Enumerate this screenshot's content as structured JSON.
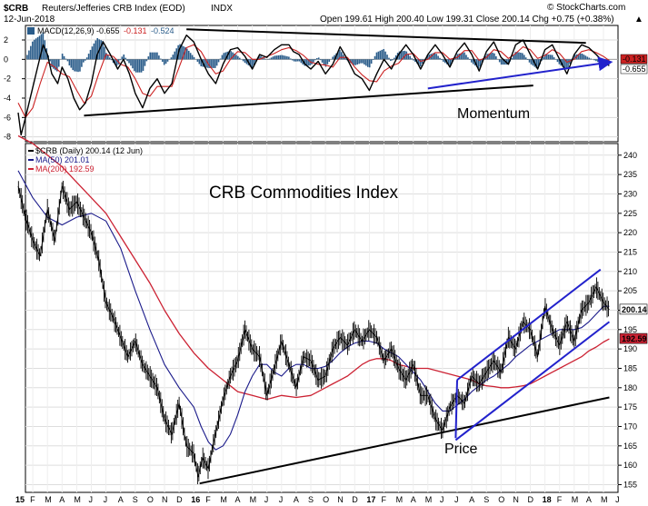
{
  "header": {
    "symbol": "$CRB",
    "name": "Reuters/Jefferies CRB Index (EOD)",
    "exchange": "INDX",
    "date": "12-Jun-2018",
    "watermark": "© StockCharts.com",
    "ohlc": "Open 199.61  High 200.40  Low 199.31  Close 200.14  Chg +0.75 (+0.38%)",
    "ohlc_arrow": "▲"
  },
  "chart_data": [
    {
      "type": "line",
      "panel": "indicator",
      "legend": {
        "label": "MACD(12,26,9)",
        "macd_value": "-0.655",
        "signal_value": "-0.131",
        "hist_value": "-0.524"
      },
      "ylim": [
        -8.5,
        3.5
      ],
      "yticks": [
        "2",
        "0",
        "-2",
        "-4",
        "-6",
        "-8"
      ],
      "ytick_values": [
        2,
        0,
        -2,
        -4,
        -6,
        -8
      ],
      "last_value_labels": [
        "-0.131",
        "-0.655"
      ],
      "annotation": "Momentum",
      "colors": {
        "macd": "#000000",
        "signal": "#cc2222",
        "histogram": "#2a5c8a",
        "trendline": "#2222cc"
      },
      "series": [
        {
          "key": "macd",
          "x": [
            0,
            0.2,
            0.5,
            0.9,
            1.3,
            1.7,
            2.0,
            2.3,
            2.7,
            3.0,
            3.4,
            3.8,
            4.2,
            4.6,
            5.0,
            5.4,
            5.8,
            6.3,
            6.8,
            7.2,
            7.6,
            8.0,
            8.5,
            9.0,
            9.5,
            10.0,
            10.5,
            11.0,
            11.5,
            12.0,
            12.5,
            13.0,
            13.5,
            14.0,
            14.5,
            15.0,
            15.5,
            16.0,
            16.5,
            17.0,
            17.5,
            18.0,
            18.5,
            18.8,
            19.2,
            19.6,
            20.0,
            20.5,
            21.0,
            21.5,
            22.0,
            22.5,
            23.0,
            23.5,
            24.0,
            24.5,
            25.0,
            25.5,
            26.0,
            26.5,
            27.0,
            27.5,
            28.0,
            28.5,
            29.0,
            29.5,
            30.0,
            30.5,
            31.0,
            31.5,
            32.0,
            32.5,
            33.0,
            33.5,
            34.0,
            34.5,
            35.0,
            35.5,
            36.0,
            36.5,
            37.0,
            37.5,
            38.0,
            38.5,
            39.0,
            39.5,
            40.0,
            40.4
          ],
          "values": [
            -5.5,
            -7.8,
            -6.0,
            -3.5,
            -1.0,
            1.5,
            0.5,
            -1.5,
            -2.5,
            -0.8,
            -2.0,
            -4.0,
            -5.2,
            -4.5,
            -2.5,
            0.5,
            1.8,
            0.5,
            -1.0,
            0.0,
            -1.5,
            -3.5,
            -5.0,
            -3.0,
            -2.0,
            -3.5,
            -2.5,
            1.0,
            2.5,
            1.8,
            0.0,
            -1.5,
            -2.5,
            -0.5,
            1.0,
            1.2,
            0.3,
            -1.0,
            0.5,
            0.2,
            1.0,
            1.5,
            1.5,
            0.8,
            0.5,
            -0.5,
            -1.0,
            -0.2,
            -1.5,
            -0.5,
            1.3,
            0.0,
            -1.5,
            -2.0,
            -3.2,
            -1.5,
            0.0,
            -1.0,
            0.5,
            1.5,
            0.5,
            -1.0,
            0.5,
            1.5,
            0.5,
            -0.8,
            0.8,
            1.7,
            0.5,
            -1.2,
            0.8,
            1.8,
            0.2,
            -0.5,
            1.5,
            2.0,
            0.5,
            -1.0,
            1.0,
            1.5,
            0.0,
            -1.5,
            0.5,
            1.5,
            1.2,
            0.5,
            -0.3,
            -0.65
          ]
        },
        {
          "key": "signal",
          "x": [
            0,
            0.5,
            1.0,
            1.5,
            2.0,
            2.5,
            3.0,
            3.5,
            4.0,
            4.5,
            5.0,
            5.5,
            6.0,
            6.5,
            7.0,
            7.5,
            8.0,
            8.5,
            9.0,
            9.5,
            10.0,
            10.5,
            11.0,
            11.5,
            12.0,
            12.5,
            13.0,
            13.5,
            14.0,
            14.5,
            15.0,
            15.5,
            16.0,
            16.5,
            17.0,
            17.5,
            18.0,
            18.5,
            19.0,
            19.5,
            20.0,
            20.5,
            21.0,
            21.5,
            22.0,
            22.5,
            23.0,
            23.5,
            24.0,
            24.5,
            25.0,
            25.5,
            26.0,
            26.5,
            27.0,
            27.5,
            28.0,
            28.5,
            29.0,
            29.5,
            30.0,
            30.5,
            31.0,
            31.5,
            32.0,
            32.5,
            33.0,
            33.5,
            34.0,
            34.5,
            35.0,
            35.5,
            36.0,
            36.5,
            37.0,
            37.5,
            38.0,
            38.5,
            39.0,
            39.5,
            40.0,
            40.4
          ],
          "values": [
            -4.5,
            -6.0,
            -5.0,
            -2.5,
            -0.3,
            -0.8,
            -1.5,
            -1.8,
            -3.2,
            -4.5,
            -3.8,
            -1.5,
            0.5,
            0.3,
            -0.5,
            -0.8,
            -2.0,
            -3.5,
            -3.8,
            -2.8,
            -2.8,
            -2.8,
            -0.8,
            1.2,
            1.5,
            0.8,
            -0.5,
            -1.5,
            -1.2,
            0.0,
            0.8,
            0.7,
            0.0,
            0.0,
            0.3,
            0.6,
            1.0,
            1.2,
            0.9,
            0.4,
            -0.3,
            -0.5,
            -0.6,
            -0.8,
            0.2,
            0.2,
            -0.8,
            -1.6,
            -2.2,
            -2.3,
            -1.2,
            -0.7,
            -0.4,
            0.5,
            0.6,
            -0.2,
            0.0,
            0.7,
            0.7,
            0.0,
            0.2,
            0.9,
            0.9,
            -0.1,
            0.2,
            1.0,
            0.8,
            0.1,
            0.6,
            1.3,
            1.0,
            0.1,
            0.4,
            1.0,
            0.6,
            -0.3,
            0.0,
            0.8,
            1.0,
            0.7,
            0.3,
            -0.13
          ]
        }
      ],
      "trendlines": [
        {
          "color": "black",
          "points": [
            [
              4.5,
              -5.8
            ],
            [
              35.2,
              -2.7
            ]
          ]
        },
        {
          "color": "black",
          "points": [
            [
              11.5,
              3.1
            ],
            [
              38.8,
              1.7
            ]
          ]
        },
        {
          "color": "blue",
          "points": [
            [
              28.0,
              -3.0
            ],
            [
              40.4,
              -0.3
            ]
          ],
          "arrow": true
        }
      ]
    },
    {
      "type": "line",
      "panel": "price",
      "title": "CRB Commodities Index",
      "legend": [
        {
          "label": "$CRB (Daily) 200.14 (12 Jun)",
          "color": "#000000"
        },
        {
          "label": "MA(50) 201.01",
          "color": "#1a1a8a"
        },
        {
          "label": "MA(200) 192.59",
          "color": "#cc2233"
        }
      ],
      "ylim": [
        153,
        243
      ],
      "yticks": [
        "240",
        "235",
        "230",
        "225",
        "220",
        "215",
        "210",
        "205",
        "200",
        "195",
        "190",
        "185",
        "180",
        "175",
        "170",
        "165",
        "160",
        "155"
      ],
      "ytick_values": [
        240,
        235,
        230,
        225,
        220,
        215,
        210,
        205,
        200,
        195,
        190,
        185,
        180,
        175,
        170,
        165,
        160,
        155
      ],
      "last_value_labels": [
        "200.14",
        "192.59"
      ],
      "annotation": "Price",
      "xlabels": [
        "15",
        "F",
        "M",
        "A",
        "M",
        "J",
        "J",
        "A",
        "S",
        "O",
        "N",
        "D",
        "16",
        "F",
        "M",
        "A",
        "M",
        "J",
        "J",
        "A",
        "S",
        "O",
        "N",
        "D",
        "17",
        "F",
        "M",
        "A",
        "M",
        "J",
        "J",
        "A",
        "S",
        "O",
        "N",
        "D",
        "18",
        "F",
        "M",
        "A",
        "M",
        "J"
      ],
      "colors": {
        "price": "#000000",
        "ma50": "#1a1a8a",
        "ma200": "#cc2233",
        "channel": "#2222cc",
        "support": "#000000"
      },
      "series": [
        {
          "key": "price",
          "name": "$CRB",
          "x": [
            0,
            0.5,
            1.0,
            1.5,
            2.0,
            2.5,
            3.0,
            3.5,
            4.0,
            4.5,
            5.0,
            5.5,
            6.0,
            6.5,
            7.0,
            7.5,
            8.0,
            8.5,
            9.0,
            9.5,
            10.0,
            10.5,
            11.0,
            11.5,
            12.0,
            12.3,
            12.6,
            13.0,
            13.3,
            13.6,
            14.0,
            14.5,
            15.0,
            15.5,
            16.0,
            16.5,
            17.0,
            17.5,
            18.0,
            18.5,
            19.0,
            19.5,
            20.0,
            20.5,
            21.0,
            21.5,
            22.0,
            22.5,
            23.0,
            23.5,
            24.0,
            24.5,
            25.0,
            25.5,
            26.0,
            26.5,
            27.0,
            27.5,
            28.0,
            28.5,
            29.0,
            29.5,
            30.0,
            30.5,
            31.0,
            31.5,
            32.0,
            32.5,
            33.0,
            33.5,
            34.0,
            34.5,
            35.0,
            35.5,
            36.0,
            36.5,
            37.0,
            37.5,
            38.0,
            38.5,
            39.0,
            39.5,
            40.0,
            40.4
          ],
          "values": [
            232,
            224,
            218,
            214,
            226,
            218,
            232,
            226,
            228,
            224,
            220,
            213,
            202,
            198,
            193,
            188,
            192,
            186,
            183,
            180,
            172,
            168,
            176,
            165,
            163,
            157,
            162,
            159,
            165,
            170,
            177,
            183,
            187,
            195,
            190,
            188,
            178,
            185,
            192,
            186,
            180,
            188,
            187,
            182,
            183,
            190,
            193,
            191,
            195,
            192,
            195,
            193,
            187,
            190,
            185,
            182,
            186,
            178,
            178,
            172,
            169,
            175,
            178,
            176,
            183,
            181,
            184,
            187,
            184,
            193,
            190,
            197,
            195,
            188,
            201,
            195,
            191,
            197,
            192,
            200,
            202,
            206,
            202,
            200.14
          ]
        },
        {
          "key": "ma50",
          "name": "MA(50)",
          "x": [
            0,
            1,
            2,
            3,
            4,
            5,
            6,
            7,
            8,
            9,
            10,
            11,
            12,
            12.5,
            13,
            13.5,
            14,
            14.5,
            15,
            15.5,
            16,
            16.5,
            17,
            17.5,
            18,
            18.5,
            19,
            19.5,
            20,
            20.5,
            21,
            21.5,
            22,
            22.5,
            23,
            23.5,
            24,
            24.5,
            25,
            25.5,
            26,
            26.5,
            27,
            27.5,
            28,
            28.5,
            29,
            29.5,
            30,
            30.5,
            31,
            31.5,
            32,
            32.5,
            33,
            33.5,
            34,
            34.5,
            35,
            35.5,
            36,
            36.5,
            37,
            37.5,
            38,
            38.5,
            39,
            39.5,
            40,
            40.4
          ],
          "values": [
            236,
            229,
            224,
            222,
            224,
            225,
            223,
            216,
            205,
            195,
            186,
            180,
            175,
            170,
            166,
            164,
            165,
            168,
            173,
            179,
            183,
            186,
            186,
            184,
            183,
            185,
            186,
            186,
            185,
            185,
            185.5,
            187,
            189,
            190.5,
            191.5,
            192,
            192,
            191.5,
            190,
            189,
            188,
            186,
            184,
            182,
            179,
            176,
            174,
            174,
            175.5,
            177,
            179,
            180.5,
            182,
            183,
            184.5,
            186,
            188,
            189.5,
            191,
            192,
            193,
            194,
            195,
            195,
            195,
            195.5,
            197,
            199,
            201,
            201.01
          ]
        },
        {
          "key": "ma200",
          "name": "MA(200)",
          "x": [
            0,
            1,
            2,
            3,
            4,
            5,
            6,
            7,
            8,
            9,
            10,
            11,
            12,
            13,
            14,
            15,
            16,
            17,
            18,
            19,
            20,
            20.5,
            21,
            21.5,
            22,
            22.5,
            23,
            23.5,
            24,
            24.5,
            25,
            25.5,
            26,
            26.5,
            27,
            27.5,
            28,
            28.5,
            29,
            29.5,
            30,
            30.5,
            31,
            31.5,
            32,
            32.5,
            33,
            33.5,
            34,
            34.5,
            35,
            35.5,
            36,
            36.5,
            37,
            37.5,
            38,
            38.5,
            39,
            39.5,
            40,
            40.4
          ],
          "values": [
            245,
            243,
            240,
            237,
            233,
            229,
            225,
            219,
            213,
            207,
            200,
            194,
            189,
            185,
            182,
            179,
            178,
            177,
            178,
            177.5,
            178,
            179,
            180,
            181,
            182,
            183,
            184.5,
            186,
            187,
            187.5,
            187.5,
            187,
            186,
            185.5,
            185,
            185,
            185,
            184.5,
            184,
            183.5,
            183,
            182.5,
            182,
            181,
            180.5,
            180.3,
            180,
            180,
            180.2,
            180.5,
            181,
            182,
            183,
            184,
            185,
            186,
            187,
            188,
            189.5,
            190.5,
            191.8,
            192.59
          ]
        }
      ],
      "trendlines": [
        {
          "color": "black",
          "points": [
            [
              12.4,
              155.3
            ],
            [
              40.4,
              177.5
            ]
          ]
        },
        {
          "color": "blue",
          "points": [
            [
              30.0,
              182.0
            ],
            [
              39.8,
              210.5
            ]
          ]
        },
        {
          "color": "blue",
          "points": [
            [
              29.9,
              166.5
            ],
            [
              40.4,
              197.0
            ]
          ]
        },
        {
          "color": "blue",
          "points": [
            [
              29.9,
              167.0
            ],
            [
              30.0,
              182.0
            ]
          ]
        }
      ]
    }
  ]
}
